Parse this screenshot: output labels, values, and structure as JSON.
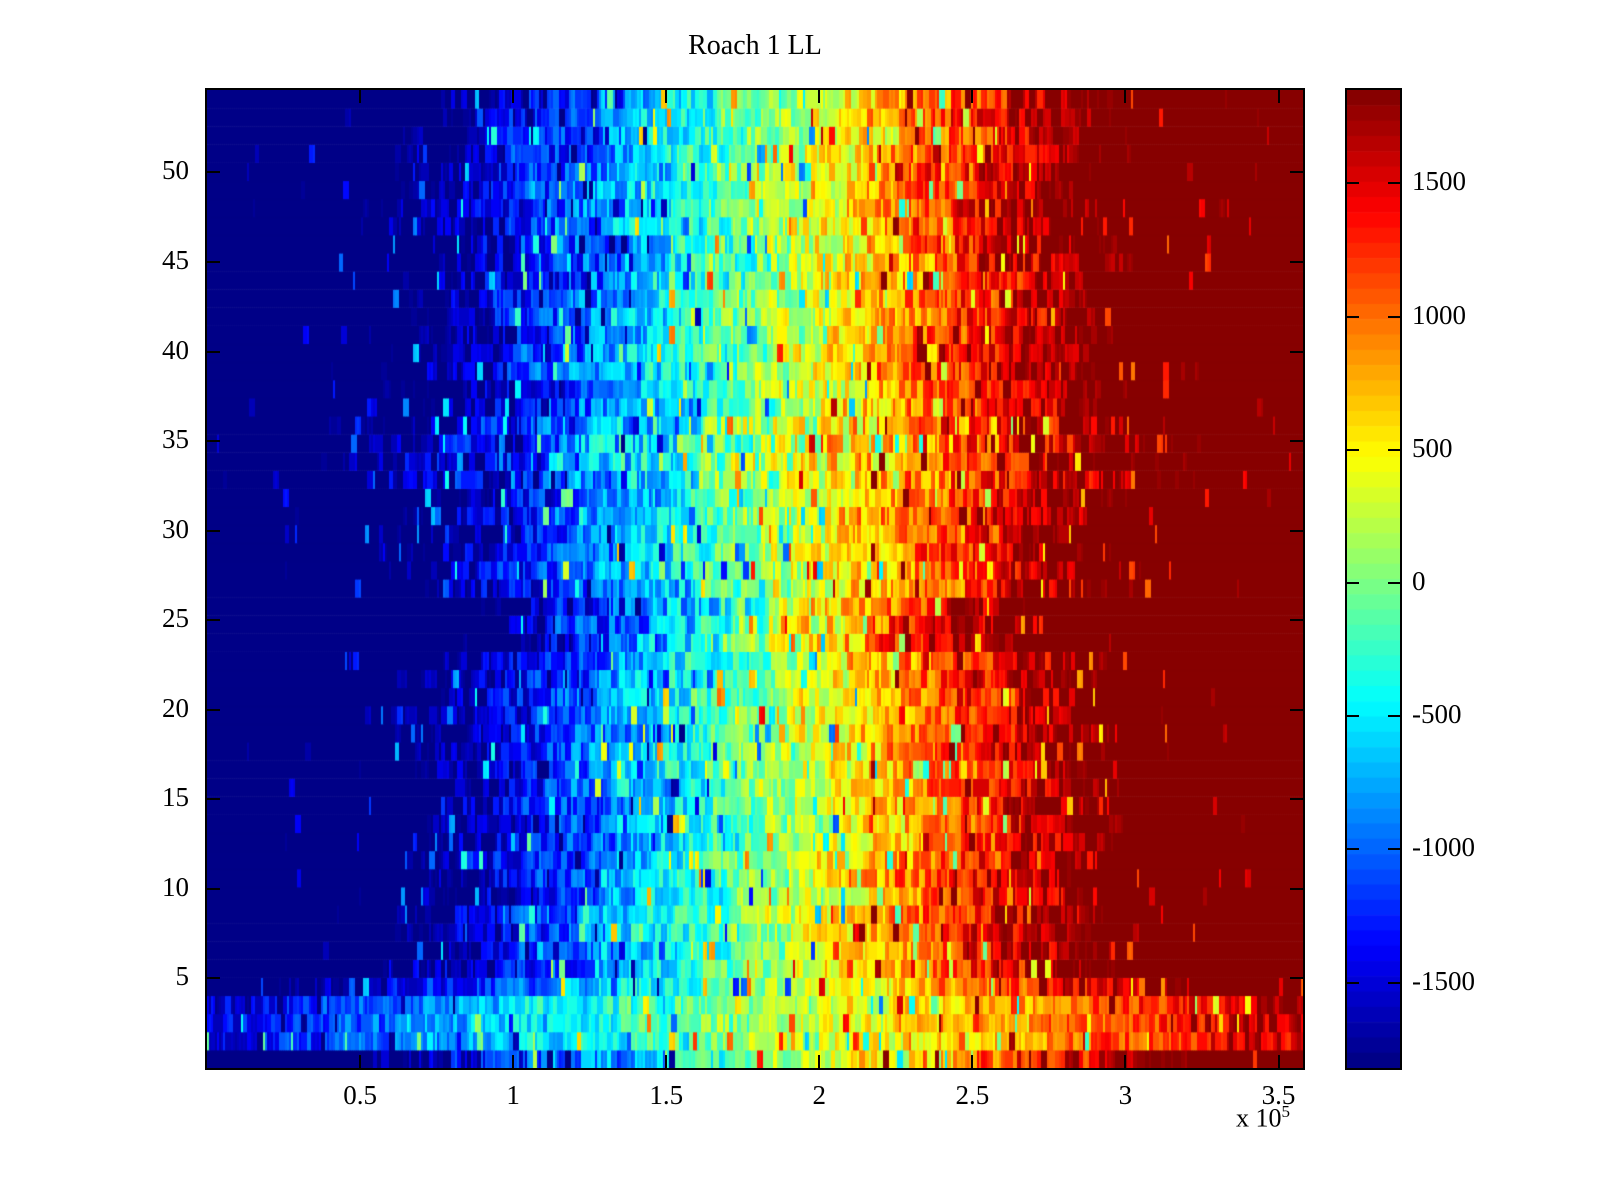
{
  "figure": {
    "background": "#ffffff",
    "text_color": "#000000"
  },
  "chart_data": {
    "type": "heatmap",
    "title": "Roach 1 LL",
    "colormap": "jet",
    "colormap_levels": 64,
    "x_axis": {
      "min": 0,
      "max": 358000,
      "ticks": [
        50000,
        100000,
        150000,
        200000,
        250000,
        300000,
        350000
      ],
      "tick_labels": [
        "0.5",
        "1",
        "1.5",
        "2",
        "2.5",
        "3",
        "3.5"
      ],
      "exponent_text": "x 10",
      "exponent_power": "5"
    },
    "y_axis": {
      "min": 0,
      "max": 54.6,
      "ticks": [
        5,
        10,
        15,
        20,
        25,
        30,
        35,
        40,
        45,
        50
      ],
      "tick_labels": [
        "5",
        "10",
        "15",
        "20",
        "25",
        "30",
        "35",
        "40",
        "45",
        "50"
      ]
    },
    "colorbar": {
      "min": -1820,
      "max": 1850,
      "ticks": [
        1500,
        1000,
        500,
        0,
        -500,
        -1000,
        -1500
      ],
      "tick_labels": [
        "1500",
        "1000",
        "500",
        "0",
        "-500",
        "-1000",
        "-1500"
      ]
    },
    "grid": {
      "rows": 54,
      "cols": 548
    },
    "value_model": {
      "seed": 1337,
      "left_value": -3200,
      "right_value": 3200,
      "clip_min": -1820,
      "clip_max": 1850,
      "base_noise": 380,
      "spike_probability": 0.15,
      "spike_amplitude": 1400,
      "row_anomalies": [
        {
          "row_from": 1,
          "row_to": 1,
          "amp": 0.85,
          "offset": 0,
          "noise": 380,
          "label": "bottom edge row"
        },
        {
          "row_from": 2,
          "row_to": 4,
          "amp": 0.48,
          "offset": 120,
          "noise": 300,
          "label": "compressed bright band (cyan-to-orange)"
        },
        {
          "row_from": 5,
          "row_to": 5,
          "amp": 0.72,
          "offset": 60,
          "noise": 340,
          "label": "transition row"
        },
        {
          "row_from": 24,
          "row_to": 26,
          "amp": 1.35,
          "offset": 0,
          "noise": 520,
          "label": "saturated dark band"
        },
        {
          "row_from": 33,
          "row_to": 36,
          "amp": 0.92,
          "offset": 0,
          "noise": 580,
          "label": "high-variance stripy band"
        },
        {
          "row_from": 44,
          "row_to": 47,
          "amp": 1.0,
          "offset": 0,
          "noise": 470,
          "label": "mildly stripy band"
        }
      ]
    }
  }
}
